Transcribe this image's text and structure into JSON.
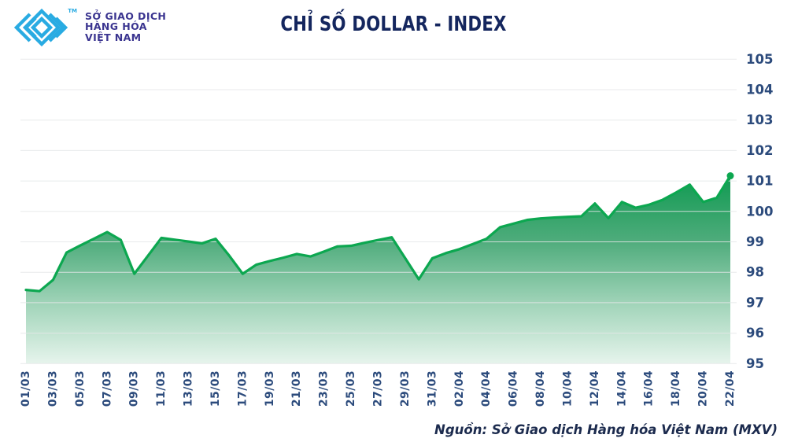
{
  "header": {
    "logo": {
      "lines": [
        "SỞ GIAO DỊCH",
        "HÀNG HÓA",
        "VIỆT NAM"
      ],
      "trademark": "TM"
    },
    "title": "CHỈ SỐ DOLLAR - INDEX"
  },
  "footer": {
    "source": "Nguồn: Sở Giao dịch Hàng hóa Việt Nam (MXV)"
  },
  "colors": {
    "line": "#0CA750",
    "area_top": "#0F9A51",
    "area_mid1": "#4FAC7C",
    "area_mid2": "#A5D6BC",
    "area_bottom": "#E6F4EC",
    "grid": "#E4E6E8",
    "axis_label": "#2C4B7C",
    "title": "#14265E",
    "logo_mark": "#29ABE2",
    "logo_text": "#3B3590",
    "source_text": "#1C2B4E"
  },
  "chart_data": {
    "type": "area",
    "title": "CHỈ SỐ DOLLAR - INDEX",
    "source": "Nguồn: Sở Giao dịch Hàng hóa Việt Nam (MXV)",
    "legend": false,
    "grid": true,
    "y_axis_side": "right",
    "x_label_rotation": -90,
    "end_marker": true,
    "ylim": [
      95,
      105
    ],
    "y_ticks": [
      95,
      96,
      97,
      98,
      99,
      100,
      101,
      102,
      103,
      104,
      105
    ],
    "x": [
      "01/03",
      "02/03",
      "03/03",
      "04/03",
      "05/03",
      "06/03",
      "07/03",
      "08/03",
      "09/03",
      "10/03",
      "11/03",
      "12/03",
      "13/03",
      "14/03",
      "15/03",
      "16/03",
      "17/03",
      "18/03",
      "19/03",
      "20/03",
      "21/03",
      "22/03",
      "23/03",
      "24/03",
      "25/03",
      "26/03",
      "27/03",
      "28/03",
      "29/03",
      "30/03",
      "31/03",
      "01/04",
      "02/04",
      "03/04",
      "04/04",
      "05/04",
      "06/04",
      "07/04",
      "08/04",
      "09/04",
      "10/04",
      "11/04",
      "12/04",
      "13/04",
      "14/04",
      "15/04",
      "16/04",
      "17/04",
      "18/04",
      "19/04",
      "20/04",
      "21/04",
      "22/04"
    ],
    "values": [
      97.42,
      97.38,
      97.75,
      98.65,
      98.88,
      99.1,
      99.32,
      99.06,
      97.95,
      98.54,
      99.13,
      99.07,
      99.01,
      98.95,
      99.1,
      98.55,
      97.95,
      98.25,
      98.37,
      98.48,
      98.6,
      98.52,
      98.68,
      98.85,
      98.87,
      98.97,
      99.06,
      99.15,
      98.46,
      97.77,
      98.46,
      98.63,
      98.76,
      98.93,
      99.1,
      99.48,
      99.6,
      99.72,
      99.77,
      99.8,
      99.82,
      99.84,
      100.26,
      99.78,
      100.31,
      100.12,
      100.22,
      100.38,
      100.62,
      100.88,
      100.31,
      100.45,
      101.17
    ],
    "x_tick_labels": [
      "01/03",
      "03/03",
      "05/03",
      "07/03",
      "09/03",
      "11/03",
      "13/03",
      "15/03",
      "17/03",
      "19/03",
      "21/03",
      "23/03",
      "25/03",
      "27/03",
      "29/03",
      "31/03",
      "02/04",
      "04/04",
      "06/04",
      "08/04",
      "10/04",
      "12/04",
      "14/04",
      "16/04",
      "18/04",
      "20/04",
      "22/04"
    ]
  }
}
